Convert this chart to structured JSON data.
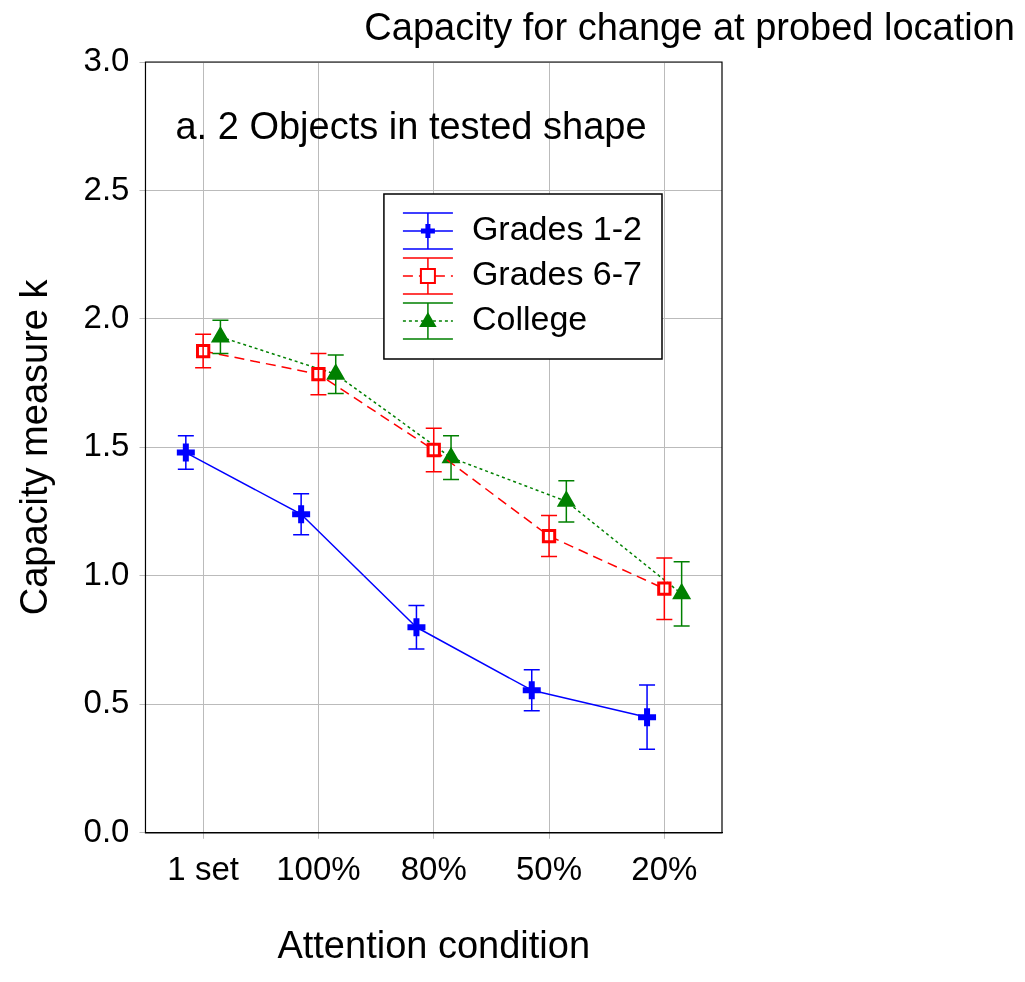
{
  "chart_data": {
    "type": "line",
    "title": "Capacity for change at probed location",
    "xlabel": "Attention condition",
    "ylabel": "Capacity measure k",
    "annotations": [
      "a. 2 Objects in tested shape"
    ],
    "categories": [
      "1 set",
      "100%",
      "80%",
      "50%",
      "20%"
    ],
    "series": [
      {
        "name": "Grades 1-2",
        "color": "#0000ff",
        "marker": "cross",
        "line_style": "solid",
        "values": [
          1.48,
          1.24,
          0.8,
          0.555,
          0.45
        ],
        "errors": [
          0.065,
          0.08,
          0.085,
          0.08,
          0.125
        ]
      },
      {
        "name": "Grades 6-7",
        "color": "#ff0000",
        "marker": "square",
        "line_style": "dashed",
        "values": [
          1.875,
          1.785,
          1.49,
          1.155,
          0.95
        ],
        "errors": [
          0.065,
          0.08,
          0.085,
          0.08,
          0.12
        ]
      },
      {
        "name": "College",
        "color": "#008000",
        "marker": "triangle",
        "line_style": "dotted",
        "values": [
          1.93,
          1.785,
          1.46,
          1.29,
          0.93
        ],
        "errors": [
          0.065,
          0.075,
          0.085,
          0.08,
          0.125
        ]
      }
    ],
    "ylim": [
      0,
      3
    ],
    "yticks": [
      {
        "value": 0,
        "label": "0.0"
      },
      {
        "value": 0.5,
        "label": "0.5"
      },
      {
        "value": 1,
        "label": "1.0"
      },
      {
        "value": 1.5,
        "label": "1.5"
      },
      {
        "value": 2,
        "label": "2.0"
      },
      {
        "value": 2.5,
        "label": "2.5"
      },
      {
        "value": 3,
        "label": "3.0"
      }
    ],
    "grid": true,
    "legend": "top right"
  }
}
